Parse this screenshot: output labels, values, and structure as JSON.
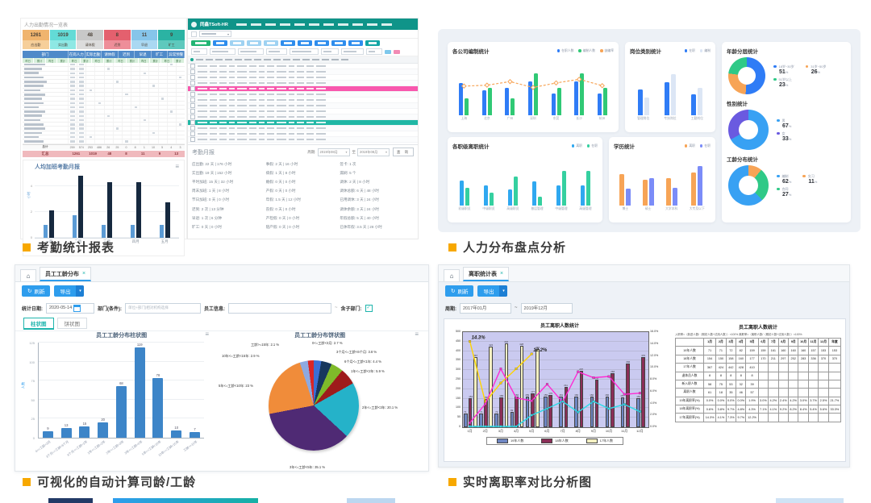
{
  "accent": {
    "caption_bullet": "#f7a800",
    "caption_text": "#3a3a3a",
    "app_header": "#0f9489"
  },
  "captions": [
    {
      "text": "考勤统计报表"
    },
    {
      "text": "人力分布盘点分析"
    },
    {
      "text": "可视化的自动计算司龄/工龄"
    },
    {
      "text": "实时离职率对比分析图"
    }
  ],
  "attendance": {
    "sheet_title": "人力出勤情况一览表",
    "tiles": [
      {
        "value": "1261",
        "label": "应出勤",
        "bg": "#f0b46e",
        "bg2": "#f6cf9a"
      },
      {
        "value": "1019",
        "label": "实出勤",
        "bg": "#63dbd6",
        "bg2": "#8ee8e4"
      },
      {
        "value": "48",
        "label": "请休假",
        "bg": "#c8c8c8",
        "bg2": "#dcdcdc"
      },
      {
        "value": "8",
        "label": "迟到",
        "bg": "#e4606e",
        "bg2": "#ee8e99"
      },
      {
        "value": "11",
        "label": "早退",
        "bg": "#86c5ea",
        "bg2": "#aad8f2"
      },
      {
        "value": "9",
        "label": "旷工",
        "bg": "#2bb3a3",
        "bg2": "#5ec9bd"
      }
    ],
    "header_cols": [
      "部门",
      "在岗人力",
      "实际出勤",
      "请休假",
      "迟到",
      "早退",
      "旷工",
      "异常预警"
    ],
    "sub_cols": [
      "昨日",
      "累计"
    ],
    "total_row": [
      "总计",
      "259",
      "574",
      "253",
      "486",
      "26",
      "25",
      "0",
      "8",
      "1",
      "10",
      "5",
      "4",
      "3"
    ],
    "summary_row": [
      "汇总",
      "1261",
      "1019",
      "48",
      "8",
      "11",
      "9",
      "13"
    ],
    "app_brand": "同鑫TSoft-HR",
    "month_report": {
      "title": "考勤月报",
      "period_label": "周期:",
      "period_from": "2019年08月",
      "to_label": "至",
      "period_to": "2019年08月",
      "search_btn": "查 询",
      "col1": [
        "应出勤: 22 天 | 176 小时",
        "实出勤: 19 天 | 152 小时",
        "平时加班: 15 天 | 32 小时",
        "周末加班: 1 天 | 8 小时",
        "节日加班: 0 天 | 0 小时",
        "迟到: 2 次 | 13 分钟",
        "早退: 1 次 | 6 分钟",
        "旷工: 0 天 | 0 小时"
      ],
      "col2": [
        "事假: 2 天 | 16 小时",
        "病假: 1 天 | 8 小时",
        "婚假: 0 天 | 0 小时",
        "产假: 0 天 | 0 小时",
        "年假: 1.5 天 | 12 小时",
        "丧假: 0 天 | 0 小时",
        "产检假: 0 天 | 0 小时",
        "陪产假: 0 天 | 0 小时"
      ],
      "col3": [
        "签卡: 1 次",
        "漏刷: 5 个",
        "调休: 2 天 | 8 小时",
        "调休总额: 6 天 | 48 小时",
        "已用调休: 3 天 | 24 小时",
        "调休余额: 3 天 | 24 小时",
        "年假总额: 5 天 | 40 小时",
        "已休年假: 3.5 天 | 28 小时"
      ]
    }
  },
  "tenure": {
    "tab_title": "员工工龄分布",
    "close": "×",
    "refresh_btn": "刷新",
    "export_btn": "导出",
    "caret": "▾",
    "stat_date_label": "统计日期:",
    "stat_date": "2020-05-14",
    "dept_label": "部门(条件):",
    "dept_placeholder": "单位+部门|相对机构选择",
    "emp_label": "员工信息:",
    "include_sub_label": "含子部门:",
    "check_mark": "✓",
    "view_tab_bar": "柱状图",
    "view_tab_pie": "饼状图"
  },
  "turnover": {
    "tab_title": "离职统计表",
    "close": "×",
    "refresh_btn": "刷新",
    "export_btn": "导出",
    "caret": "▾",
    "period_label": "周期:",
    "period_from": "2017年01月",
    "tilde": "~",
    "period_to": "2019年12月"
  },
  "chart_data": [
    {
      "id": "overtime_monthly",
      "type": "bar",
      "title": "人均加班考勤月报",
      "ylabel": "小时",
      "categories": [
        "一月",
        "二月",
        "三月",
        "四月",
        "五月"
      ],
      "series": [
        {
          "color": "#5b9bd5",
          "values": [
            1,
            1.7,
            1,
            1,
            1
          ]
        },
        {
          "color": "#16293f",
          "values": [
            2.1,
            4.8,
            4.3,
            4.3,
            2.7
          ]
        }
      ],
      "ylim": [
        0,
        5
      ],
      "yticks": [
        0,
        2,
        4
      ]
    },
    {
      "id": "company_headcount",
      "type": "bar+line",
      "title": "各公司编制统计",
      "categories": [
        "上海",
        "北京",
        "广州",
        "深圳",
        "东莞",
        "长沙",
        "杭州"
      ],
      "series": [
        {
          "legend": "在职人数",
          "color": "#2f7cf6",
          "values": [
            72,
            55,
            60,
            75,
            48,
            75,
            48
          ]
        },
        {
          "legend": "编制人数",
          "color": "#30c975",
          "values": [
            38,
            60,
            38,
            92,
            60,
            92,
            60
          ]
        }
      ],
      "line": {
        "legend": "缺编率",
        "color": "#f7a456",
        "values": [
          45,
          47,
          55,
          42,
          52,
          60,
          46
        ]
      },
      "ylim": [
        0,
        100
      ]
    },
    {
      "id": "post_category",
      "type": "bar",
      "title": "岗位类别统计",
      "categories": [
        "管理岗位",
        "专技岗位",
        "工勤岗位"
      ],
      "series": [
        {
          "legend": "在职",
          "color": "#2f7cf6",
          "values": [
            55,
            70,
            44
          ]
        },
        {
          "legend": "编制",
          "color": "#dce6f5",
          "values": [
            38,
            88,
            58
          ]
        }
      ],
      "ylim": [
        0,
        100
      ]
    },
    {
      "id": "age_donut",
      "type": "pie",
      "title": "年龄分层统计",
      "from_deg": 0,
      "slices": [
        {
          "label": "18岁~30岁",
          "pct": 51,
          "color": "#2f7cf6"
        },
        {
          "label": "31岁~50岁",
          "pct": 26,
          "color": "#f7a456"
        },
        {
          "label": "51岁以上",
          "pct": 23,
          "color": "#2fc987"
        }
      ]
    },
    {
      "id": "rank_turnover",
      "type": "bar",
      "title": "各职级离职统计",
      "categories": [
        "初级职员",
        "中级职员",
        "高级职员",
        "基层管理",
        "中级管理",
        "高级管理"
      ],
      "series": [
        {
          "legend": "离职",
          "color": "#2fa8f0",
          "values": [
            60,
            48,
            38,
            58,
            48,
            48
          ]
        },
        {
          "legend": "在职",
          "color": "#35d0a0",
          "values": [
            42,
            30,
            70,
            22,
            82,
            82
          ]
        }
      ],
      "ylim": [
        0,
        100
      ]
    },
    {
      "id": "education",
      "type": "bar",
      "title": "学历统计",
      "categories": [
        "博士",
        "硕士",
        "大学本科",
        "大专及以下"
      ],
      "series": [
        {
          "legend": "离职",
          "color": "#f7a456",
          "values": [
            75,
            62,
            65,
            78
          ]
        },
        {
          "legend": "在职",
          "color": "#7b8cf8",
          "values": [
            40,
            65,
            42,
            95
          ]
        }
      ],
      "ylim": [
        0,
        100
      ]
    },
    {
      "id": "gender_donut",
      "type": "pie",
      "title": "性别统计",
      "from_deg": 0,
      "slices": [
        {
          "label": "男",
          "pct": 67,
          "color": "#38a1f3"
        },
        {
          "label": "女",
          "pct": 33,
          "color": "#6a5ae0"
        }
      ]
    },
    {
      "id": "worktype_donut",
      "type": "pie",
      "title": "工龄分布统计",
      "from_deg": 136.8,
      "slices": [
        {
          "label": "编制",
          "pct": 62,
          "color": "#38a1f3"
        },
        {
          "label": "实习",
          "pct": 11,
          "color": "#f7a456"
        },
        {
          "label": "合同",
          "pct": 27,
          "color": "#2fc987"
        }
      ]
    },
    {
      "id": "tenure_bar",
      "type": "bar",
      "title": "员工工龄分布柱状图",
      "ylabel": "人数",
      "categories": [
        "0<=工龄<3月",
        "3个月<=工龄<6个月",
        "6个月<=工龄<1年",
        "1年<=工龄<2年",
        "2年<=工龄<3年",
        "3年<=工龄<5年",
        "5年<=工龄<10年",
        "10年<=工龄<15年",
        "工龄>=15年"
      ],
      "values": [
        9,
        13,
        15,
        20,
        68,
        119,
        78,
        10,
        7
      ],
      "color": "#3d85c8",
      "ylim": [
        0,
        125
      ],
      "yticks": [
        0,
        25,
        50,
        75,
        100,
        125
      ]
    },
    {
      "id": "tenure_pie",
      "type": "pie",
      "title": "员工工龄分布饼状图",
      "slices": [
        {
          "label": "0<=工龄<3月",
          "pct": 2.7,
          "color": "#3b6fd4"
        },
        {
          "label": "3个月<=工龄<6个月",
          "pct": 3.8,
          "color": "#17375e"
        },
        {
          "label": "6个月<=工龄<1年",
          "pct": 4.4,
          "color": "#7fba2a"
        },
        {
          "label": "1年<=工龄<2年",
          "pct": 5.9,
          "color": "#9e1b1b"
        },
        {
          "label": "2年<=工龄<3年",
          "pct": 20.1,
          "color": "#25b2c9"
        },
        {
          "label": "3年<=工龄<5年",
          "pct": 35.1,
          "color": "#4f2a74"
        },
        {
          "label": "5年<=工龄<10年",
          "pct": 23.0,
          "color": "#f08c3a"
        },
        {
          "label": "10年<=工龄<15年",
          "pct": 2.9,
          "color": "#8ea9e0"
        },
        {
          "label": "工龄>=15年",
          "pct": 2.1,
          "color": "#d92626"
        }
      ]
    },
    {
      "id": "turnover_combo",
      "type": "bar+line",
      "title": "员工离职人数统计",
      "categories": [
        "1月",
        "2月",
        "3月",
        "4月",
        "5月",
        "6月",
        "7月",
        "8月",
        "9月",
        "10月",
        "11月",
        "12月"
      ],
      "bar_series": [
        {
          "name": "19年人数",
          "color": "#6f86c2",
          "values": [
            71,
            71,
            72,
            82,
            159,
            159,
            161,
            160,
            160,
            160,
            157,
            153
          ]
        },
        {
          "name": "18年人数",
          "color": "#8b2e57",
          "values": [
            154,
            150,
            158,
            160,
            177,
            170,
            211,
            297,
            252,
            283,
            336,
            370
          ]
        },
        {
          "name": "17年人数",
          "color": "#f4f0c2",
          "values": [
            367,
            424,
            442,
            428,
            410
          ]
        }
      ],
      "line_series": [
        {
          "name": "17年离职率",
          "color": "#ffd400",
          "values": [
            14.3,
            4.1,
            7.3,
            9.7,
            12.2
          ]
        },
        {
          "name": "18年离职率",
          "color": "#ff2ad4",
          "values": [
            0.6,
            3.8,
            9.7,
            4.8,
            4.3,
            7.1,
            4.1,
            9.2,
            8.2,
            8.4,
            5.4,
            5.6
          ]
        },
        {
          "name": "19年离职率",
          "color": "#29dbe8",
          "values": [
            0.0,
            0.0,
            0.0,
            0.0,
            1.9,
            3.0,
            4.2,
            2.4,
            4.2,
            3.0,
            3.7,
            2.5
          ]
        }
      ],
      "ylim_left": [
        0,
        500
      ],
      "ylim_right": [
        0,
        16
      ],
      "yticks_left": [
        0,
        50,
        100,
        150,
        200,
        250,
        300,
        350,
        400,
        450,
        500
      ],
      "yticks_right": [
        "0.0%",
        "2.0%",
        "4.0%",
        "6.0%",
        "8.0%",
        "10.0%",
        "12.0%",
        "14.0%",
        "16.0%"
      ],
      "plot_bg": "#cacaf0",
      "legend": [
        "19年人数",
        "18年人数",
        "17年人数"
      ],
      "annotations": [
        {
          "text": "14.3%",
          "month": 0,
          "value": 14.3
        },
        {
          "text": "12.2%",
          "month": 4,
          "value": 12.2
        }
      ]
    },
    {
      "id": "turnover_table",
      "type": "table",
      "title": "员工离职人数统计",
      "note": "入职率=（新进人数/（期初人数+试用人数））×100%  离职率=（离职人数/（期初人数+试用人数））×100%",
      "columns": [
        "",
        "1月",
        "2月",
        "3月",
        "4月",
        "5月",
        "6月",
        "7月",
        "8月",
        "9月",
        "10月",
        "11月",
        "12月",
        "年度"
      ],
      "rows": [
        [
          "19年人数",
          "71",
          "71",
          "72",
          "82",
          "159",
          "159",
          "161",
          "160",
          "160",
          "160",
          "157",
          "153",
          "153"
        ],
        [
          "18年人数",
          "154",
          "150",
          "158",
          "160",
          "177",
          "170",
          "211",
          "297",
          "252",
          "283",
          "336",
          "370",
          "370"
        ],
        [
          "17年人数",
          "367",
          "424",
          "442",
          "428",
          "410",
          "",
          "",
          "",
          "",
          "",
          "",
          "",
          ""
        ],
        [
          "退休员人数",
          "8",
          "8",
          "8",
          "8",
          "8",
          "",
          "",
          "",
          "",
          "",
          "",
          "",
          ""
        ],
        [
          "新入职人数",
          "58",
          "75",
          "53",
          "32",
          "39",
          "",
          "",
          "",
          "",
          "",
          "",
          "",
          ""
        ],
        [
          "离职人数",
          "61",
          "18",
          "35",
          "46",
          "57",
          "",
          "",
          "",
          "",
          "",
          "",
          "",
          ""
        ],
        [
          "19年离职率(%)",
          "0.0%",
          "0.0%",
          "0.0%",
          "0.0%",
          "1.9%",
          "3.0%",
          "4.2%",
          "2.4%",
          "4.2%",
          "3.0%",
          "3.7%",
          "2.5%",
          "21.7%"
        ],
        [
          "18年离职率(%)",
          "0.6%",
          "3.8%",
          "9.7%",
          "4.8%",
          "4.3%",
          "7.1%",
          "4.1%",
          "9.2%",
          "8.2%",
          "8.4%",
          "5.4%",
          "5.6%",
          "33.3%"
        ],
        [
          "17年离职率(%)",
          "14.3%",
          "4.1%",
          "7.3%",
          "9.7%",
          "12.2%",
          "",
          "",
          "",
          "",
          "",
          "",
          "",
          ""
        ]
      ]
    }
  ]
}
